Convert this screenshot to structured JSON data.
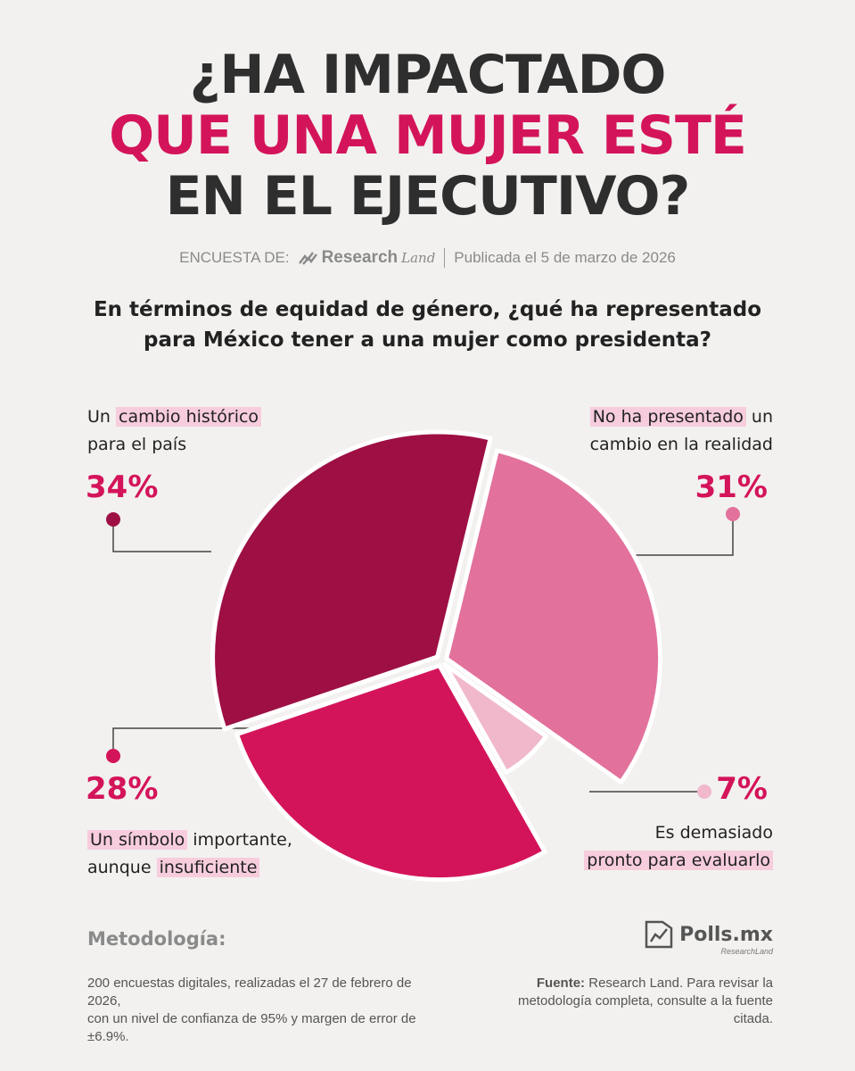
{
  "title": {
    "line1": "¿HA IMPACTADO",
    "line2": "QUE UNA MUJER ESTÉ",
    "line3": "EN EL EJECUTIVO?"
  },
  "byline": {
    "prefix": "ENCUESTA DE:",
    "brand_main": "Research",
    "brand_script": "Land",
    "published": "Publicada el 5 de marzo de 2026"
  },
  "question": {
    "line1": "En términos de equidad de género, ¿qué ha representado",
    "line2": "para México tener a una mujer como presidenta?"
  },
  "labels": {
    "historic": {
      "pre": "Un ",
      "hl": "cambio histórico",
      "line2": "para el país",
      "pct": "34%"
    },
    "nochange": {
      "hl": "No ha presentado",
      "post": " un",
      "line2": "cambio en la realidad",
      "pct": "31%"
    },
    "symbol": {
      "hl1": "Un símbolo",
      "mid": " importante,",
      "pre2": "aunque ",
      "hl2": "insuficiente",
      "pct": "28%"
    },
    "early": {
      "line1": "Es demasiado",
      "hl": "pronto para evaluarlo",
      "pct": "7%"
    }
  },
  "chart_data": {
    "type": "pie",
    "slices": [
      {
        "label": "Un cambio histórico para el país",
        "value": 34,
        "color": "#9e0f44"
      },
      {
        "label": "No ha presentado un cambio en la realidad",
        "value": 31,
        "color": "#e2719c"
      },
      {
        "label": "Es demasiado pronto para evaluarlo",
        "value": 7,
        "color": "#f1b8cc"
      },
      {
        "label": "Un símbolo importante, aunque insuficiente",
        "value": 28,
        "color": "#d4145a"
      }
    ]
  },
  "methodology": {
    "title": "Metodología:",
    "line1": "200 encuestas digitales, realizadas el 27 de febrero de 2026,",
    "line2": "con un nivel de confianza de 95% y margen de error de ±6.9%."
  },
  "source": {
    "label": "Fuente:",
    "line1": " Research Land. Para revisar la",
    "line2": "metodología completa, consulte a la fuente citada."
  },
  "footer_brand": {
    "name": "Polls.mx",
    "sub": "ResearchLand"
  },
  "colors": {
    "accent": "#d4145a",
    "dark": "#2e2e2e",
    "highlight": "#f7cddd"
  }
}
